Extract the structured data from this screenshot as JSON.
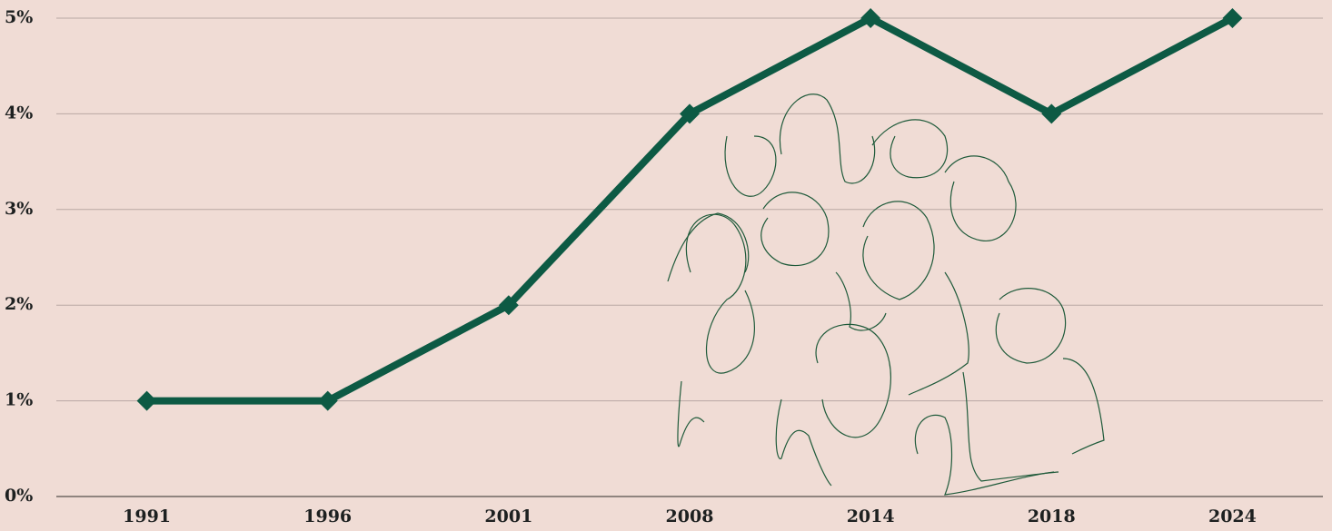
{
  "chart_data": {
    "type": "line",
    "categories": [
      "1991",
      "1996",
      "2001",
      "2008",
      "2014",
      "2018",
      "2024"
    ],
    "series": [
      {
        "color": "#0d5a44",
        "values": [
          1,
          1,
          2,
          4,
          5,
          4,
          5
        ]
      }
    ],
    "ylim": [
      0,
      5
    ],
    "yticks": [
      {
        "value": 0,
        "label": "0%"
      },
      {
        "value": 1,
        "label": "1%"
      },
      {
        "value": 2,
        "label": "2%"
      },
      {
        "value": 3,
        "label": "3%"
      },
      {
        "value": 4,
        "label": "4%"
      },
      {
        "value": 5,
        "label": "5%"
      }
    ],
    "grid": true
  }
}
